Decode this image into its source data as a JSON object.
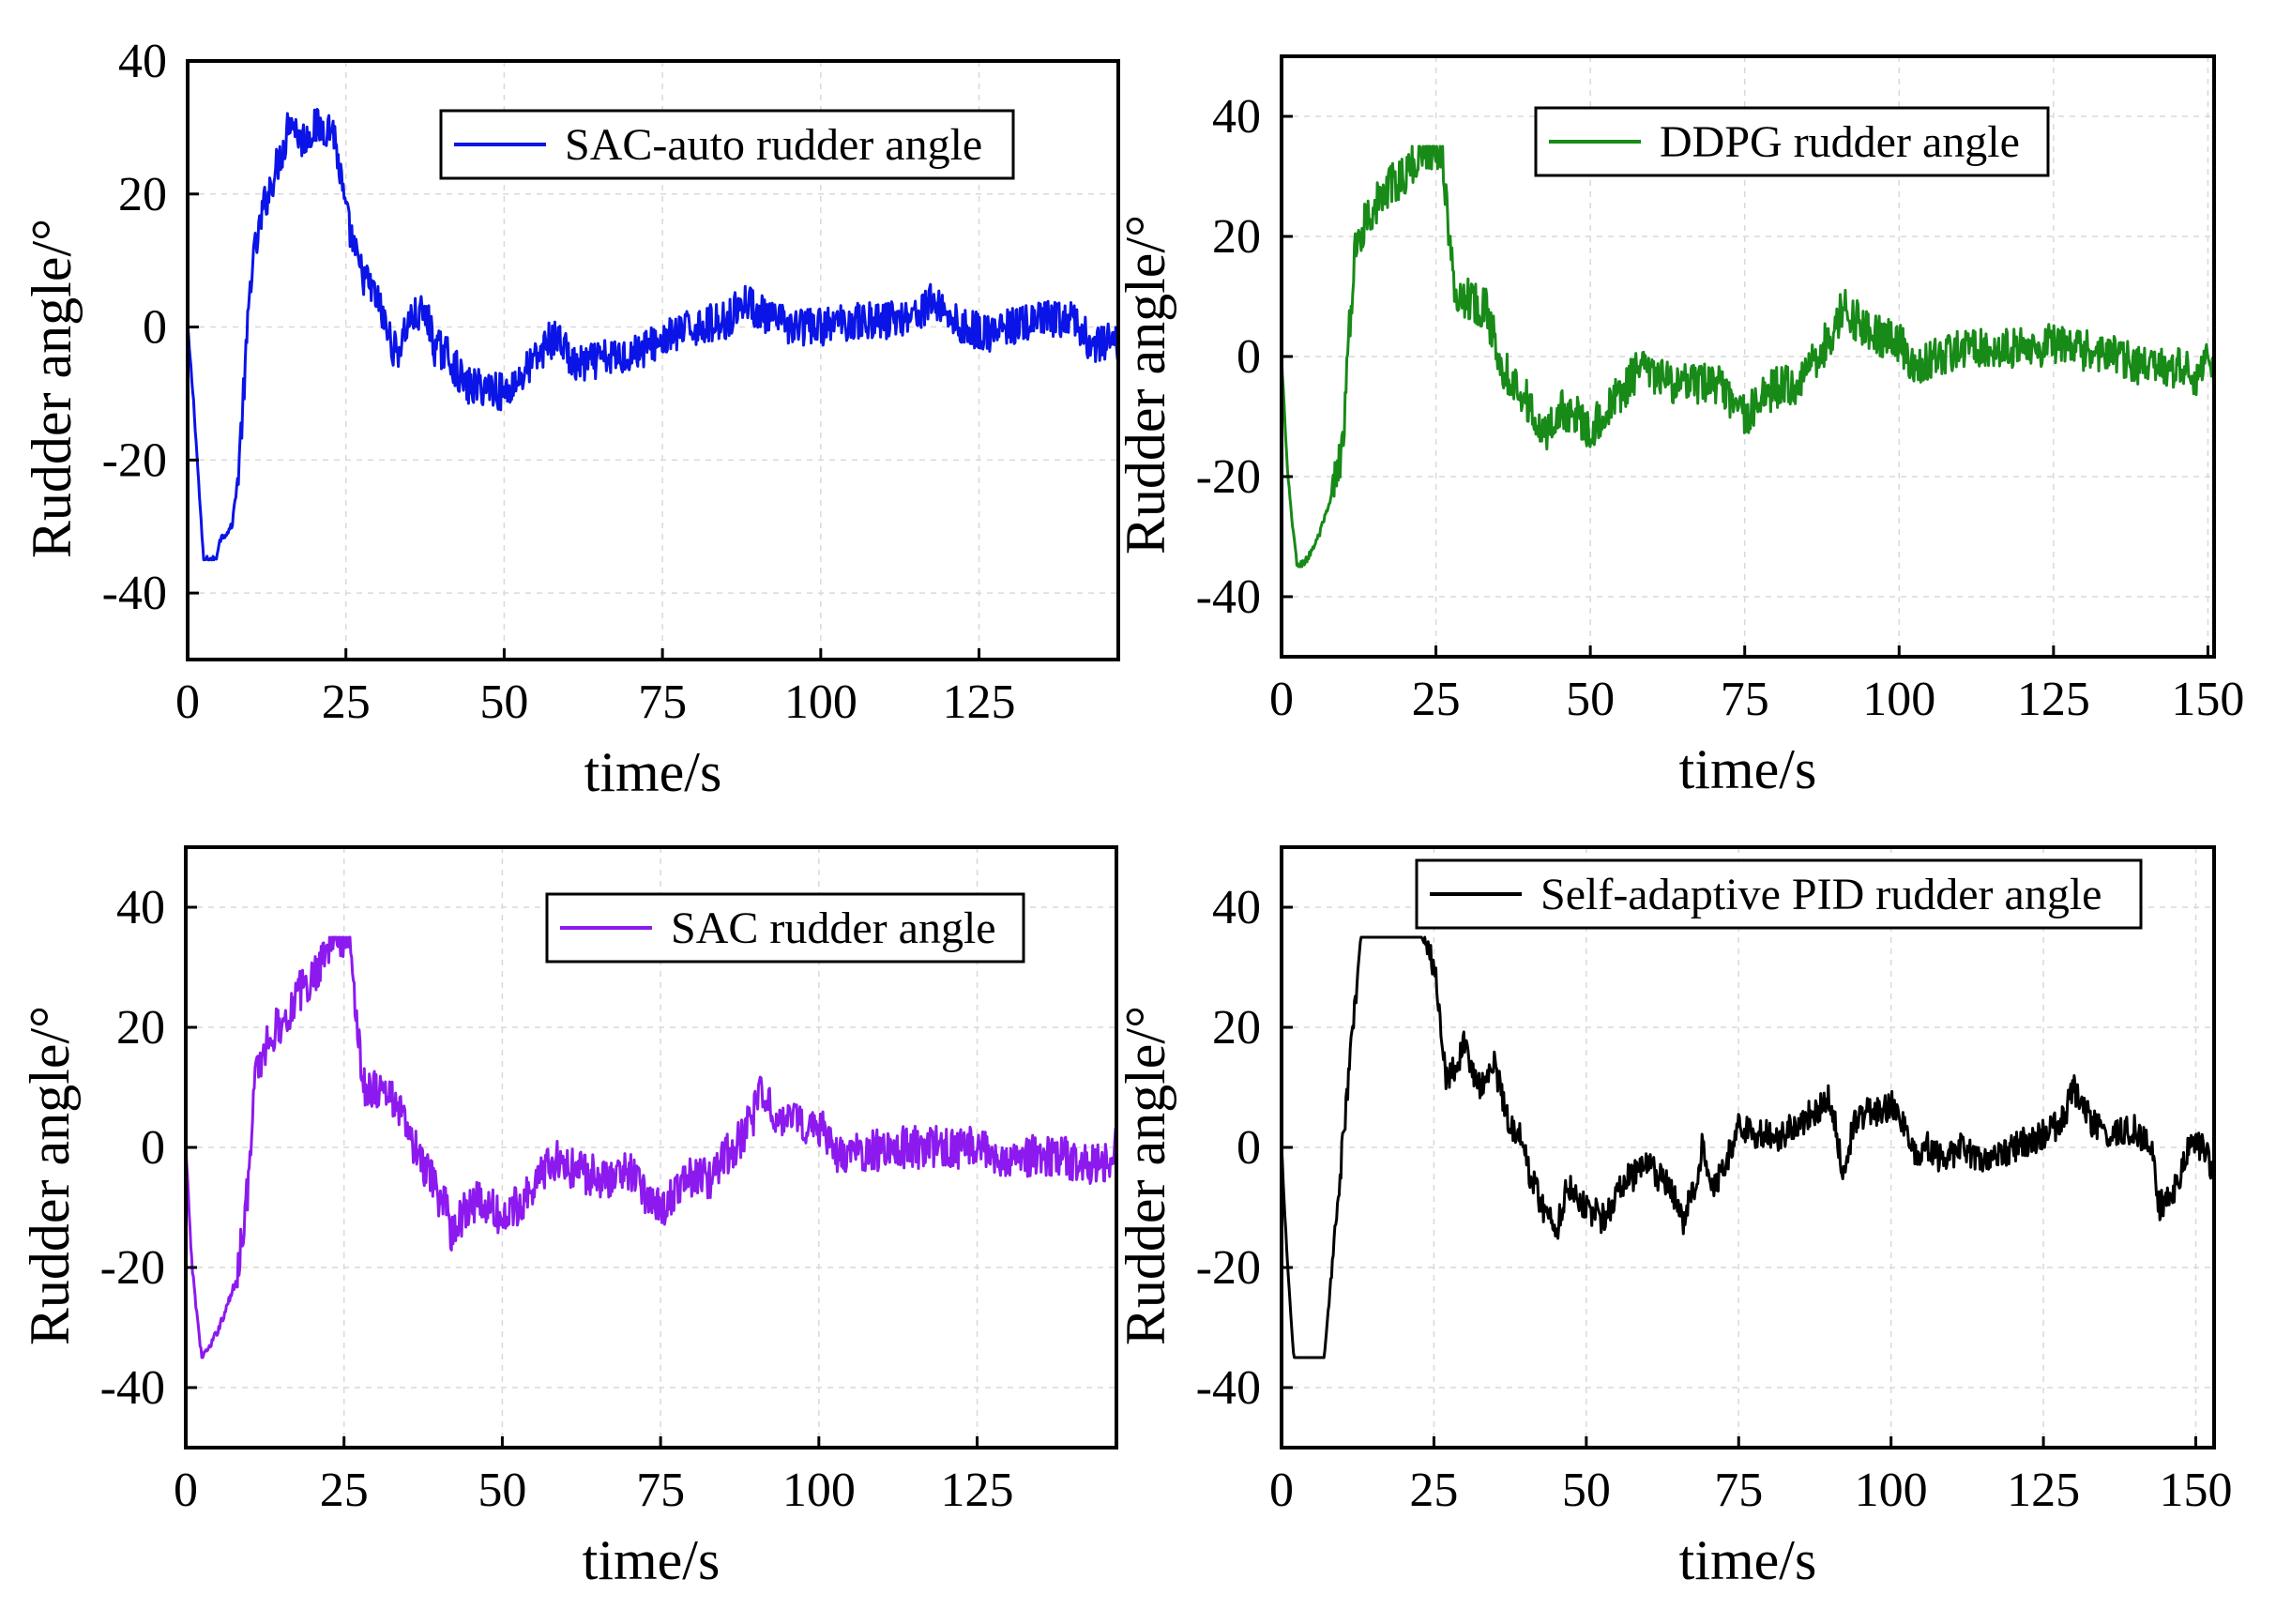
{
  "chart_data": [
    {
      "type": "line",
      "name": "panel-sac-auto",
      "legend": "SAC-auto rudder angle",
      "color": "#0a14e6",
      "legend_pos": "top-right",
      "xlabel": "time/s",
      "ylabel": "Rudder angle/°",
      "xlim": [
        0,
        147
      ],
      "ylim": [
        -50,
        40
      ],
      "xticks": [
        0,
        25,
        50,
        75,
        100,
        125
      ],
      "yticks": [
        -40,
        -20,
        0,
        20,
        40
      ],
      "grid": true,
      "noise": 1.8,
      "keypoints": [
        [
          0,
          0
        ],
        [
          1,
          -12
        ],
        [
          2.5,
          -35
        ],
        [
          4.5,
          -35
        ],
        [
          5,
          -32
        ],
        [
          7,
          -30
        ],
        [
          8,
          -22
        ],
        [
          9,
          -8
        ],
        [
          10,
          8
        ],
        [
          12,
          18
        ],
        [
          14,
          24
        ],
        [
          15.5,
          28
        ],
        [
          16,
          32
        ],
        [
          18,
          28
        ],
        [
          20,
          30
        ],
        [
          23,
          30
        ],
        [
          25,
          17
        ],
        [
          27,
          9
        ],
        [
          30,
          4
        ],
        [
          32,
          -2
        ],
        [
          33,
          -4
        ],
        [
          35,
          1
        ],
        [
          37,
          2
        ],
        [
          38,
          1
        ],
        [
          39,
          -3
        ],
        [
          41,
          -4
        ],
        [
          44,
          -9
        ],
        [
          48,
          -9
        ],
        [
          50,
          -10
        ],
        [
          52,
          -8
        ],
        [
          55,
          -5
        ],
        [
          57,
          -2
        ],
        [
          59,
          -2
        ],
        [
          61,
          -6
        ],
        [
          65,
          -5
        ],
        [
          70,
          -4
        ],
        [
          75,
          -2
        ],
        [
          80,
          0
        ],
        [
          85,
          1
        ],
        [
          88,
          4
        ],
        [
          92,
          1
        ],
        [
          96,
          0
        ],
        [
          100,
          0
        ],
        [
          105,
          1
        ],
        [
          110,
          1
        ],
        [
          115,
          2
        ],
        [
          118,
          4
        ],
        [
          122,
          0
        ],
        [
          127,
          -1
        ],
        [
          130,
          0
        ],
        [
          135,
          1
        ],
        [
          140,
          1
        ],
        [
          143,
          -3
        ],
        [
          147,
          -2
        ]
      ]
    },
    {
      "type": "line",
      "name": "panel-ddpg",
      "legend": "DDPG rudder angle",
      "color": "#178a17",
      "legend_pos": "top-right",
      "xlabel": "time/s",
      "ylabel": "Rudder angle/°",
      "xlim": [
        0,
        151
      ],
      "ylim": [
        -50,
        50
      ],
      "xticks": [
        0,
        25,
        50,
        75,
        100,
        125,
        150
      ],
      "yticks": [
        -40,
        -20,
        0,
        20,
        40
      ],
      "grid": true,
      "noise": 2.2,
      "keypoints": [
        [
          0,
          0
        ],
        [
          1,
          -20
        ],
        [
          2.5,
          -35
        ],
        [
          4,
          -34
        ],
        [
          6,
          -30
        ],
        [
          8,
          -24
        ],
        [
          10,
          -14
        ],
        [
          11,
          5
        ],
        [
          12,
          18
        ],
        [
          14,
          24
        ],
        [
          16,
          26
        ],
        [
          18,
          29
        ],
        [
          20,
          30
        ],
        [
          22,
          33
        ],
        [
          23,
          35
        ],
        [
          26,
          34
        ],
        [
          28,
          10
        ],
        [
          30,
          10
        ],
        [
          33,
          8
        ],
        [
          36,
          -2
        ],
        [
          39,
          -6
        ],
        [
          41,
          -10
        ],
        [
          42,
          -14
        ],
        [
          45,
          -9
        ],
        [
          48,
          -10
        ],
        [
          50,
          -12
        ],
        [
          52,
          -10
        ],
        [
          55,
          -6
        ],
        [
          58,
          -2
        ],
        [
          62,
          -4
        ],
        [
          66,
          -5
        ],
        [
          70,
          -4
        ],
        [
          73,
          -8
        ],
        [
          75,
          -10
        ],
        [
          78,
          -7
        ],
        [
          80,
          -5
        ],
        [
          83,
          -5
        ],
        [
          85,
          -2
        ],
        [
          88,
          2
        ],
        [
          90,
          5
        ],
        [
          91,
          9
        ],
        [
          93,
          6
        ],
        [
          96,
          4
        ],
        [
          100,
          2
        ],
        [
          103,
          -2
        ],
        [
          107,
          0
        ],
        [
          112,
          2
        ],
        [
          118,
          1
        ],
        [
          125,
          2
        ],
        [
          130,
          1
        ],
        [
          135,
          0
        ],
        [
          140,
          -2
        ],
        [
          145,
          -2
        ],
        [
          148,
          -3
        ],
        [
          151,
          0
        ]
      ]
    },
    {
      "type": "line",
      "name": "panel-sac",
      "legend": "SAC rudder angle",
      "color": "#8c1aee",
      "legend_pos": "top-right",
      "xlabel": "time/s",
      "ylabel": "Rudder angle/°",
      "xlim": [
        0,
        147
      ],
      "ylim": [
        -50,
        50
      ],
      "xticks": [
        0,
        25,
        50,
        75,
        100,
        125
      ],
      "yticks": [
        -40,
        -20,
        0,
        20,
        40
      ],
      "grid": true,
      "noise": 2.2,
      "keypoints": [
        [
          0,
          0
        ],
        [
          1,
          -20
        ],
        [
          2.5,
          -35
        ],
        [
          4,
          -33
        ],
        [
          6,
          -28
        ],
        [
          8,
          -22
        ],
        [
          10,
          -5
        ],
        [
          11,
          12
        ],
        [
          13,
          18
        ],
        [
          16,
          22
        ],
        [
          18,
          26
        ],
        [
          20,
          28
        ],
        [
          22,
          33
        ],
        [
          23,
          35
        ],
        [
          26,
          34
        ],
        [
          28,
          10
        ],
        [
          30,
          10
        ],
        [
          33,
          8
        ],
        [
          36,
          0
        ],
        [
          39,
          -6
        ],
        [
          41,
          -10
        ],
        [
          42,
          -14
        ],
        [
          45,
          -9
        ],
        [
          48,
          -10
        ],
        [
          50,
          -12
        ],
        [
          52,
          -10
        ],
        [
          55,
          -6
        ],
        [
          58,
          -2
        ],
        [
          62,
          -4
        ],
        [
          66,
          -5
        ],
        [
          70,
          -4
        ],
        [
          73,
          -8
        ],
        [
          75,
          -10
        ],
        [
          78,
          -7
        ],
        [
          80,
          -5
        ],
        [
          83,
          -5
        ],
        [
          85,
          -2
        ],
        [
          88,
          2
        ],
        [
          90,
          6
        ],
        [
          91,
          9
        ],
        [
          93,
          6
        ],
        [
          96,
          4
        ],
        [
          100,
          4
        ],
        [
          103,
          -2
        ],
        [
          107,
          -1
        ],
        [
          112,
          0
        ],
        [
          118,
          0
        ],
        [
          125,
          0
        ],
        [
          130,
          -2
        ],
        [
          135,
          -1
        ],
        [
          140,
          -2
        ],
        [
          145,
          -3
        ],
        [
          147,
          0
        ]
      ]
    },
    {
      "type": "line",
      "name": "panel-pid",
      "legend": "Self-adaptive PID rudder angle",
      "color": "#000000",
      "legend_pos": "top-right",
      "xlabel": "time/s",
      "ylabel": "Rudder angle/°",
      "xlim": [
        0,
        153
      ],
      "ylim": [
        -50,
        50
      ],
      "xticks": [
        0,
        25,
        50,
        75,
        100,
        125,
        150
      ],
      "yticks": [
        -40,
        -20,
        0,
        20,
        40
      ],
      "grid": true,
      "noise": 1.6,
      "keypoints": [
        [
          0,
          0
        ],
        [
          1,
          -20
        ],
        [
          2,
          -35
        ],
        [
          7,
          -35
        ],
        [
          10,
          0
        ],
        [
          13,
          35
        ],
        [
          23,
          35
        ],
        [
          25,
          30
        ],
        [
          26,
          22
        ],
        [
          27,
          12
        ],
        [
          29,
          14
        ],
        [
          30,
          18
        ],
        [
          32,
          10
        ],
        [
          34,
          12
        ],
        [
          35,
          14
        ],
        [
          37,
          5
        ],
        [
          39,
          2
        ],
        [
          41,
          -5
        ],
        [
          43,
          -10
        ],
        [
          45,
          -14
        ],
        [
          47,
          -6
        ],
        [
          50,
          -10
        ],
        [
          53,
          -12
        ],
        [
          56,
          -6
        ],
        [
          60,
          -3
        ],
        [
          63,
          -6
        ],
        [
          66,
          -12
        ],
        [
          68,
          -6
        ],
        [
          69,
          0
        ],
        [
          71,
          -6
        ],
        [
          74,
          0
        ],
        [
          75,
          4
        ],
        [
          78,
          2
        ],
        [
          82,
          2
        ],
        [
          86,
          5
        ],
        [
          90,
          8
        ],
        [
          91,
          4
        ],
        [
          92,
          -6
        ],
        [
          94,
          5
        ],
        [
          97,
          6
        ],
        [
          100,
          7
        ],
        [
          102,
          4
        ],
        [
          104,
          -2
        ],
        [
          106,
          0
        ],
        [
          108,
          -2
        ],
        [
          112,
          0
        ],
        [
          116,
          -3
        ],
        [
          120,
          0
        ],
        [
          125,
          2
        ],
        [
          128,
          4
        ],
        [
          130,
          10
        ],
        [
          133,
          4
        ],
        [
          136,
          2
        ],
        [
          140,
          3
        ],
        [
          143,
          0
        ],
        [
          144,
          -10
        ],
        [
          147,
          -6
        ],
        [
          149,
          0
        ],
        [
          151,
          0
        ],
        [
          153,
          -4
        ]
      ]
    }
  ]
}
